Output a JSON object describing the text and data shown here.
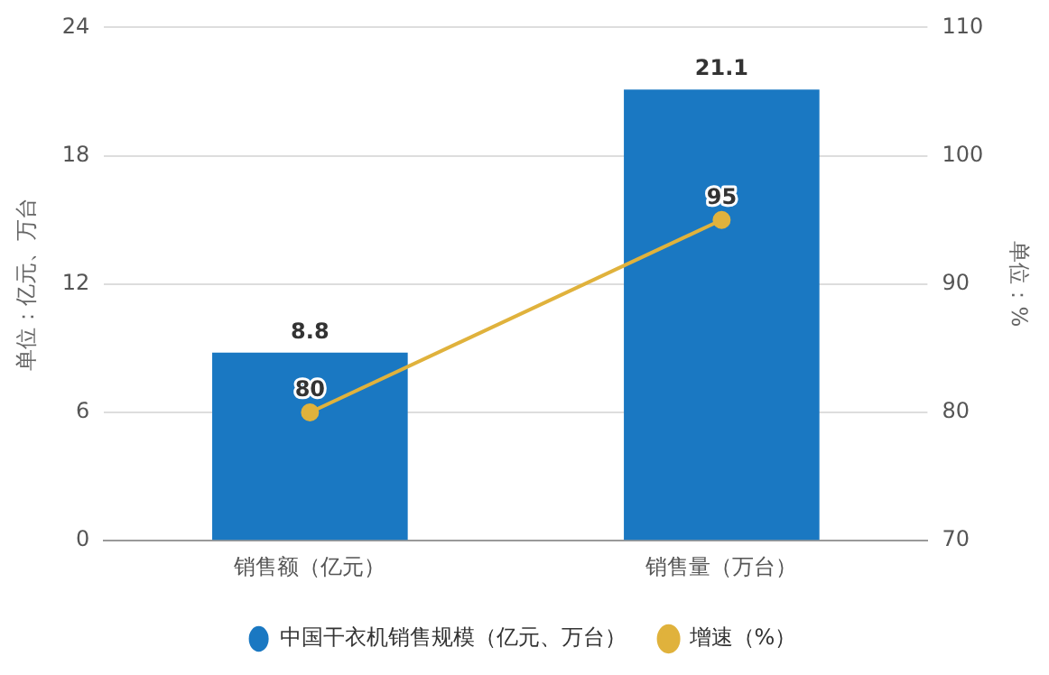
{
  "chart_data": {
    "type": "bar",
    "categories": [
      "销售额（亿元）",
      "销售量（万台）"
    ],
    "ylabel": "单位：亿元、万台",
    "y2label": "单位：%",
    "series": [
      {
        "name": "中国干衣机销售规模（亿元、万台）",
        "color": "#1a78c2",
        "values": [
          8.8,
          21.1
        ]
      },
      {
        "name": "增速（%）",
        "type": "line",
        "axis": "y2",
        "color": "#e0b23c",
        "values": [
          80,
          95
        ]
      }
    ],
    "ylim": [
      0,
      24
    ],
    "yticks": [
      0,
      6,
      12,
      18,
      24
    ],
    "y2lim": [
      70,
      110
    ],
    "y2ticks": [
      70,
      80,
      90,
      100,
      110
    ],
    "grid": "y",
    "legend": "bottom",
    "marker": "circle",
    "data_labels": true
  }
}
